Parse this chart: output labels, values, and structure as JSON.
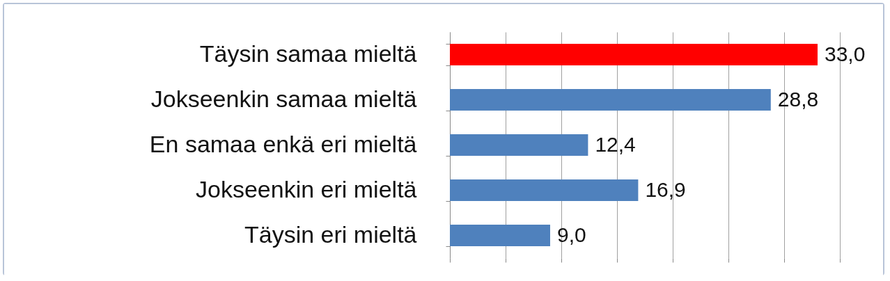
{
  "chart_data": {
    "type": "bar",
    "orientation": "horizontal",
    "categories": [
      "Täysin samaa mieltä",
      "Jokseenkin samaa mieltä",
      "En samaa enkä eri mieltä",
      "Jokseenkin eri mieltä",
      "Täysin eri mieltä"
    ],
    "values": [
      33.0,
      28.8,
      12.4,
      16.9,
      9.0
    ],
    "value_labels": [
      "33,0",
      "28,8",
      "12,4",
      "16,9",
      "9,0"
    ],
    "colors": [
      "#ff0000",
      "#4f81bd",
      "#4f81bd",
      "#4f81bd",
      "#4f81bd"
    ],
    "xlim": [
      0,
      35
    ],
    "xticks": [
      {
        "value": 0,
        "label": null
      },
      {
        "value": 5,
        "label": null
      },
      {
        "value": 10,
        "label": null
      },
      {
        "value": 15,
        "label": null
      },
      {
        "value": 20,
        "label": null
      },
      {
        "value": 25,
        "label": null
      },
      {
        "value": 30,
        "label": null
      },
      {
        "value": 35,
        "label": null
      }
    ],
    "grid": "x",
    "tick_labels": "y"
  }
}
